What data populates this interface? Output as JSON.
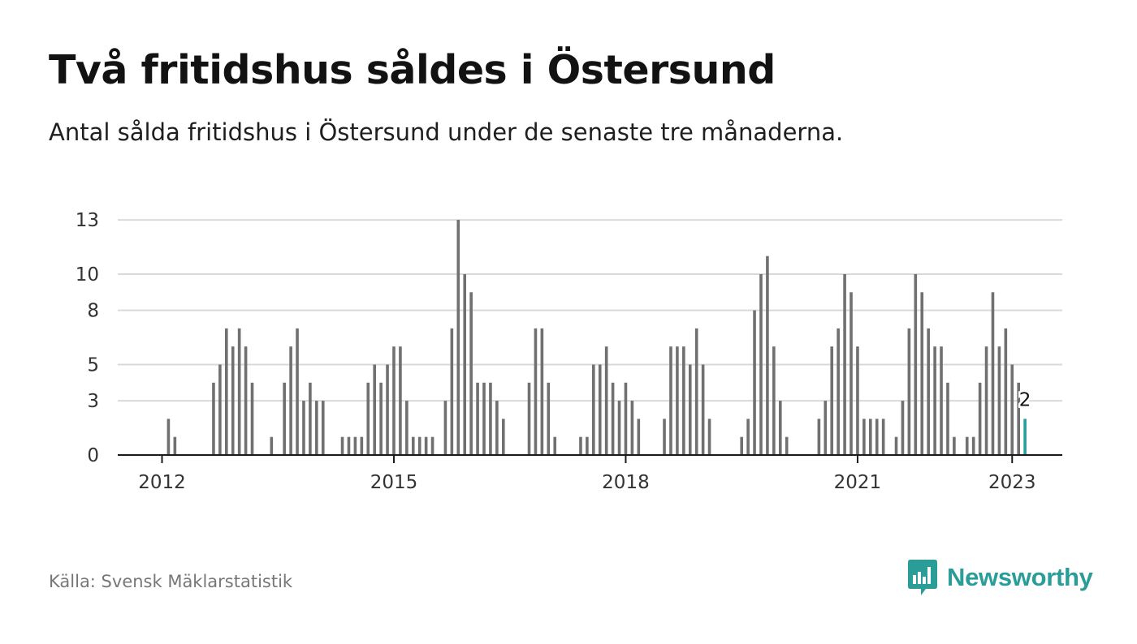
{
  "title": "Två fritidshus såldes i Östersund",
  "subtitle": "Antal sålda fritidshus i Östersund under de senaste tre månaderna.",
  "source": "Källa: Svensk Mäklarstatistik",
  "brand": "Newsworthy",
  "colors": {
    "bar": "#707070",
    "highlight": "#2a9d99",
    "grid": "#d9d9d9",
    "axis": "#1a1a1a",
    "tick_text": "#333333"
  },
  "chart_data": {
    "type": "bar",
    "start": "2011-06",
    "x_ticks": [
      "2012",
      "2015",
      "2018",
      "2021",
      "2023"
    ],
    "y_ticks": [
      "0",
      "3",
      "5",
      "8",
      "10",
      "13"
    ],
    "ylim": [
      0,
      13
    ],
    "grid": true,
    "last_label": "2",
    "values": [
      0,
      0,
      0,
      0,
      0,
      0,
      0,
      0,
      2,
      1,
      0,
      0,
      0,
      0,
      0,
      4,
      5,
      7,
      6,
      7,
      6,
      4,
      0,
      0,
      1,
      0,
      4,
      6,
      7,
      3,
      4,
      3,
      3,
      0,
      0,
      1,
      1,
      1,
      1,
      4,
      5,
      4,
      5,
      6,
      6,
      3,
      1,
      1,
      1,
      1,
      0,
      3,
      7,
      13,
      10,
      9,
      4,
      4,
      4,
      3,
      2,
      0,
      0,
      0,
      4,
      7,
      7,
      4,
      1,
      0,
      0,
      0,
      1,
      1,
      5,
      5,
      6,
      4,
      3,
      4,
      3,
      2,
      0,
      0,
      0,
      2,
      6,
      6,
      6,
      5,
      7,
      5,
      2,
      0,
      0,
      0,
      0,
      1,
      2,
      8,
      10,
      11,
      6,
      3,
      1,
      0,
      0,
      0,
      0,
      2,
      3,
      6,
      7,
      10,
      9,
      6,
      2,
      2,
      2,
      2,
      0,
      1,
      3,
      7,
      10,
      9,
      7,
      6,
      6,
      4,
      1,
      0,
      1,
      1,
      4,
      6,
      9,
      6,
      7,
      5,
      4,
      2
    ]
  }
}
